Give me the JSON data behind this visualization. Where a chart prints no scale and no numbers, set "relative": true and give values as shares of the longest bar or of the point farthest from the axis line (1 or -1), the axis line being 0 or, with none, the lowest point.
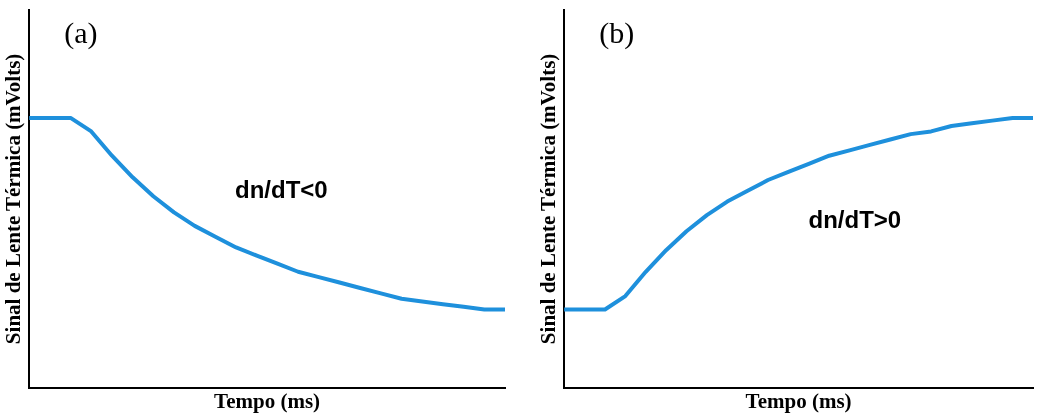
{
  "chart_data": [
    {
      "type": "line",
      "title": "(a)",
      "xlabel": "Tempo (ms)",
      "ylabel": "Sinal de Lente Térmica (mVolts)",
      "relative": true,
      "legend": false,
      "grid": false,
      "tick_labels": false,
      "annotations": [
        "dn/dT<0"
      ],
      "categories": [
        null,
        null,
        null,
        null,
        null,
        null,
        null,
        null,
        null,
        null,
        null,
        null,
        null,
        null,
        null,
        null,
        null,
        null,
        null,
        null,
        null,
        null,
        null,
        null
      ],
      "series": [
        {
          "color": "#1e90dc",
          "values": [
            1,
            1,
            1,
            0.95,
            0.86,
            0.78,
            0.71,
            0.65,
            0.6,
            0.56,
            0.52,
            0.49,
            0.46,
            0.43,
            0.41,
            0.39,
            0.37,
            0.35,
            0.33,
            0.32,
            0.31,
            0.3,
            0.29,
            0.29
          ]
        }
      ]
    },
    {
      "type": "line",
      "title": "(b)",
      "xlabel": "Tempo (ms)",
      "ylabel": "Sinal de Lente Térmica (mVolts)",
      "relative": true,
      "legend": false,
      "grid": false,
      "tick_labels": false,
      "annotations": [
        "dn/dT>0"
      ],
      "categories": [
        null,
        null,
        null,
        null,
        null,
        null,
        null,
        null,
        null,
        null,
        null,
        null,
        null,
        null,
        null,
        null,
        null,
        null,
        null,
        null,
        null,
        null,
        null,
        null
      ],
      "series": [
        {
          "color": "#1e90dc",
          "values": [
            0.29,
            0.29,
            0.29,
            0.34,
            0.43,
            0.51,
            0.58,
            0.64,
            0.69,
            0.73,
            0.77,
            0.8,
            0.83,
            0.86,
            0.88,
            0.9,
            0.92,
            0.94,
            0.95,
            0.97,
            0.98,
            0.99,
            1,
            1
          ]
        }
      ]
    }
  ]
}
